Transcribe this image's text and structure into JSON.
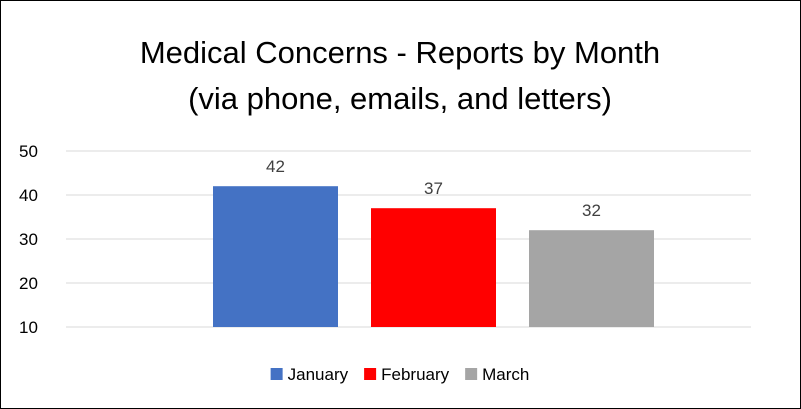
{
  "chart_data": {
    "type": "bar",
    "title": [
      "Medical Concerns - Reports by Month",
      "(via phone, emails, and letters)"
    ],
    "xlabel": "",
    "ylabel": "",
    "ylim": [
      10,
      50
    ],
    "yticks": [
      10,
      20,
      30,
      40,
      50
    ],
    "grid": true,
    "legend_position": "bottom",
    "series": [
      {
        "name": "January",
        "values": [
          42
        ],
        "color": "#4472c4"
      },
      {
        "name": "February",
        "values": [
          37
        ],
        "color": "#ff0000"
      },
      {
        "name": "March",
        "values": [
          32
        ],
        "color": "#a5a5a5"
      }
    ]
  }
}
